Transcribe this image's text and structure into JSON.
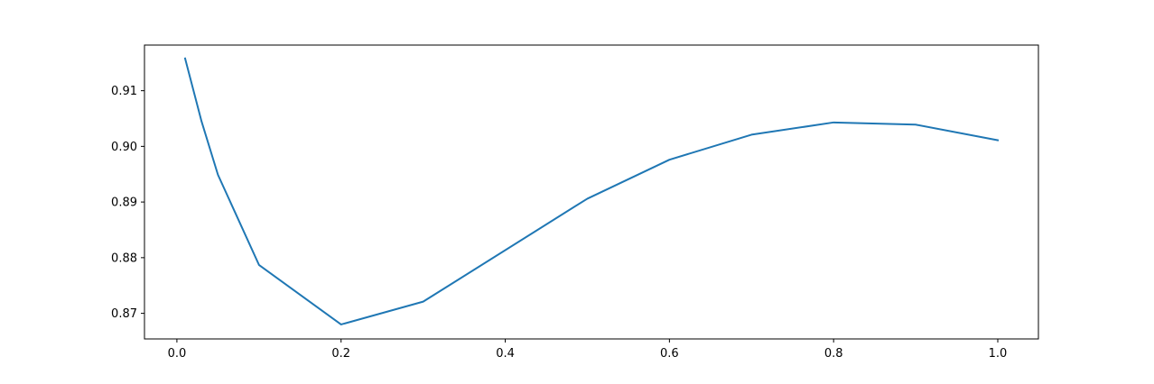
{
  "chart_data": {
    "type": "line",
    "title": "",
    "xlabel": "",
    "ylabel": "",
    "xlim": [
      -0.0395,
      1.0495
    ],
    "ylim": [
      0.8654,
      0.9182
    ],
    "x_ticks": [
      0.0,
      0.2,
      0.4,
      0.6,
      0.8,
      1.0
    ],
    "x_tick_labels": [
      "0.0",
      "0.2",
      "0.4",
      "0.6",
      "0.8",
      "1.0"
    ],
    "y_ticks": [
      0.87,
      0.88,
      0.89,
      0.9,
      0.91
    ],
    "y_tick_labels": [
      "0.87",
      "0.88",
      "0.89",
      "0.90",
      "0.91"
    ],
    "grid": false,
    "legend": "none",
    "series": [
      {
        "color": "#1f77b4",
        "x": [
          0.01,
          0.03,
          0.05,
          0.1,
          0.2,
          0.3,
          0.5,
          0.6,
          0.7,
          0.8,
          0.9,
          1.0
        ],
        "y": [
          0.9158,
          0.9045,
          0.8949,
          0.8787,
          0.868,
          0.8721,
          0.8906,
          0.8976,
          0.9021,
          0.9043,
          0.9039,
          0.9011
        ]
      }
    ]
  }
}
